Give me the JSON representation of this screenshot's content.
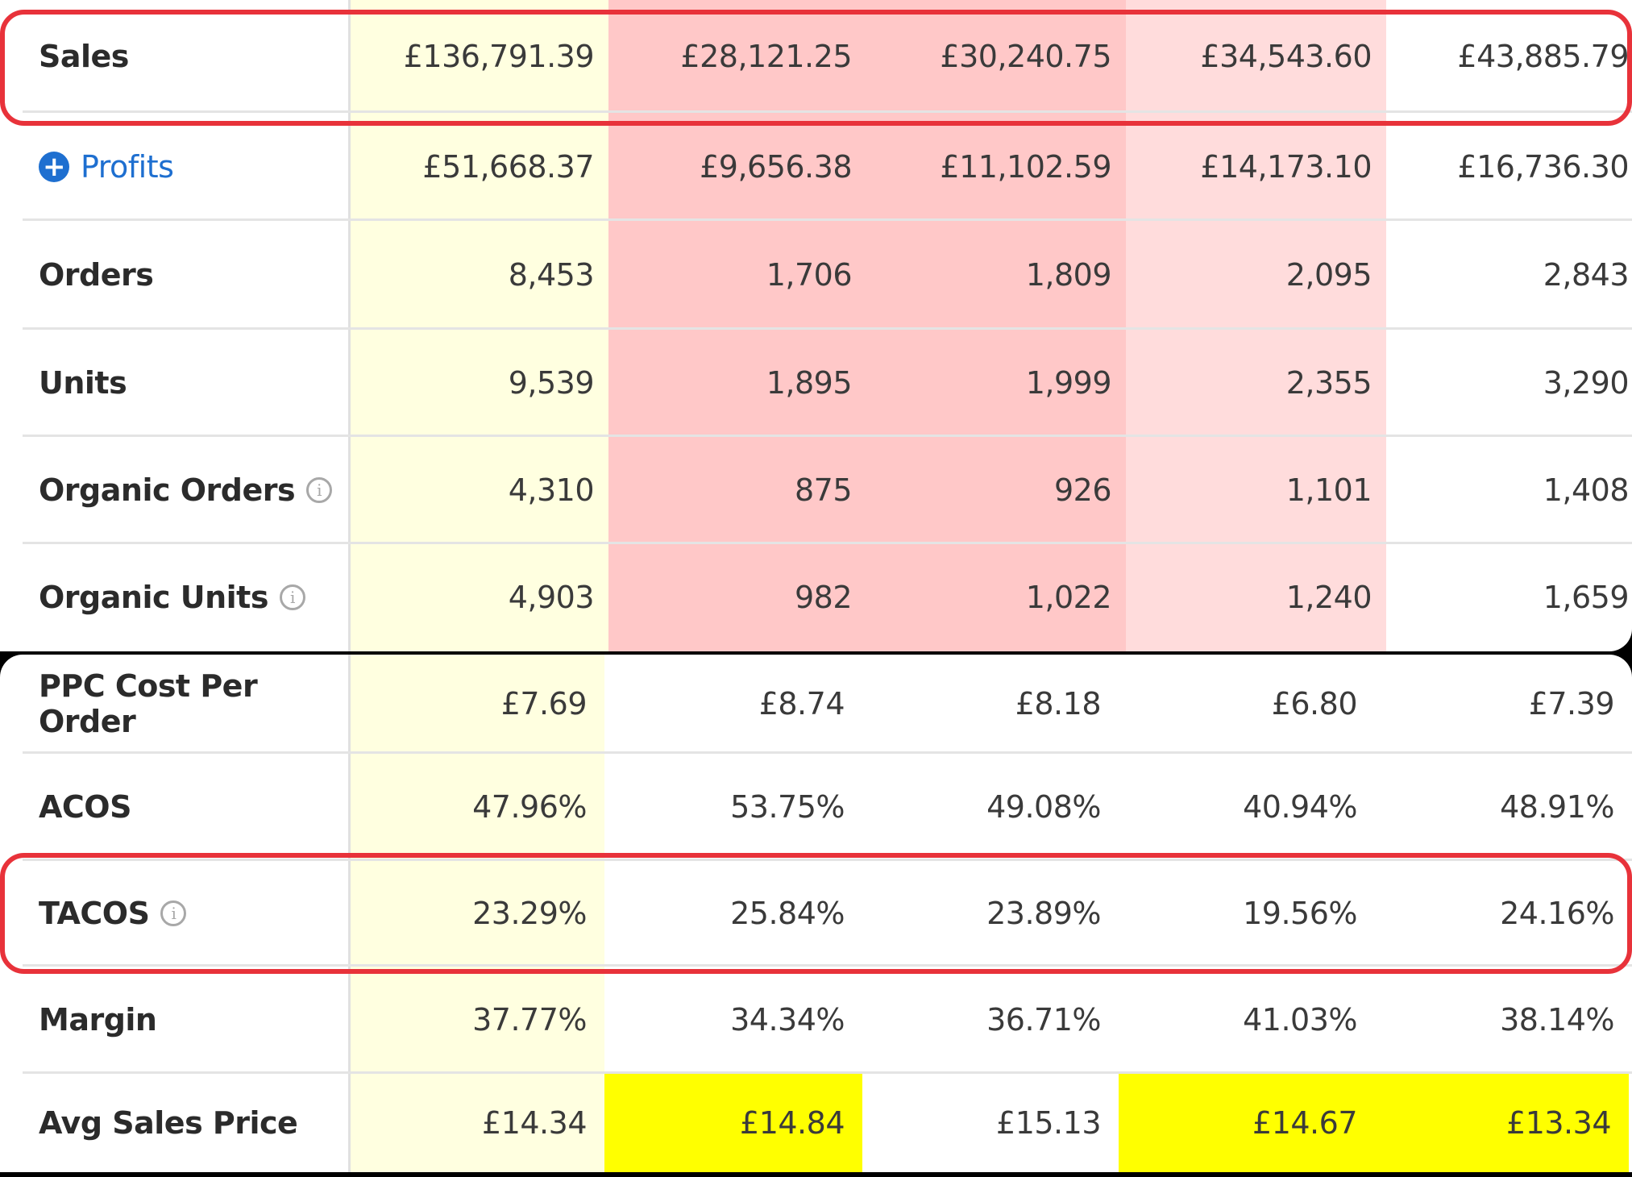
{
  "colors": {
    "total_column": "#ffffe0",
    "red_strong": "#ffc8c8",
    "red_light": "#ffdcdc",
    "yellow_highlight": "#ffff00",
    "link_blue": "#1e6fd0",
    "outline_red": "#e8323a"
  },
  "icons": {
    "expand": "plus-circle-icon",
    "info": "info-icon"
  },
  "top_rows": [
    {
      "label": "Sales",
      "values": [
        "£136,791.39",
        "£28,121.25",
        "£30,240.75",
        "£34,543.60",
        "£43,885.79"
      ]
    },
    {
      "label": "Profits",
      "values": [
        "£51,668.37",
        "£9,656.38",
        "£11,102.59",
        "£14,173.10",
        "£16,736.30"
      ]
    },
    {
      "label": "Orders",
      "values": [
        "8,453",
        "1,706",
        "1,809",
        "2,095",
        "2,843"
      ]
    },
    {
      "label": "Units",
      "values": [
        "9,539",
        "1,895",
        "1,999",
        "2,355",
        "3,290"
      ]
    },
    {
      "label": "Organic Orders",
      "values": [
        "4,310",
        "875",
        "926",
        "1,101",
        "1,408"
      ]
    },
    {
      "label": "Organic Units",
      "values": [
        "4,903",
        "982",
        "1,022",
        "1,240",
        "1,659"
      ]
    }
  ],
  "bottom_rows": [
    {
      "label": "PPC Cost Per Order",
      "values": [
        "£7.69",
        "£8.74",
        "£8.18",
        "£6.80",
        "£7.39"
      ]
    },
    {
      "label": "ACOS",
      "values": [
        "47.96%",
        "53.75%",
        "49.08%",
        "40.94%",
        "48.91%"
      ]
    },
    {
      "label": "TACOS",
      "values": [
        "23.29%",
        "25.84%",
        "23.89%",
        "19.56%",
        "24.16%"
      ]
    },
    {
      "label": "Margin",
      "values": [
        "37.77%",
        "34.34%",
        "36.71%",
        "41.03%",
        "38.14%"
      ]
    },
    {
      "label": "Avg Sales Price",
      "values": [
        "£14.34",
        "£14.84",
        "£15.13",
        "£14.67",
        "£13.34"
      ]
    }
  ]
}
